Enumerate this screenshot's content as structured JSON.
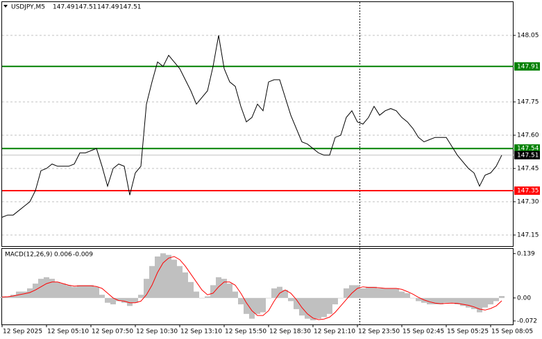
{
  "chart_data": [
    {
      "type": "line",
      "title": "USDJPY,M5",
      "ohlc": [
        147.49,
        147.51,
        147.49,
        147.51
      ],
      "color": "#000000",
      "values": [
        147.23,
        147.24,
        147.24,
        147.26,
        147.28,
        147.3,
        147.35,
        147.44,
        147.45,
        147.47,
        147.46,
        147.46,
        147.46,
        147.47,
        147.52,
        147.52,
        147.53,
        147.54,
        147.46,
        147.37,
        147.45,
        147.47,
        147.46,
        147.33,
        147.43,
        147.46,
        147.74,
        147.84,
        147.93,
        147.91,
        147.96,
        147.93,
        147.9,
        147.85,
        147.8,
        147.74,
        147.77,
        147.8,
        147.91,
        148.05,
        147.9,
        147.84,
        147.82,
        147.73,
        147.66,
        147.68,
        147.74,
        147.71,
        147.84,
        147.85,
        147.85,
        147.77,
        147.69,
        147.63,
        147.57,
        147.56,
        147.54,
        147.52,
        147.51,
        147.51,
        147.59,
        147.6,
        147.68,
        147.71,
        147.66,
        147.65,
        147.68,
        147.73,
        147.69,
        147.71,
        147.72,
        147.71,
        147.68,
        147.66,
        147.63,
        147.59,
        147.57,
        147.58,
        147.59,
        147.59,
        147.59,
        147.55,
        147.51,
        147.48,
        147.45,
        147.43,
        147.37,
        147.42,
        147.43,
        147.46,
        147.51
      ],
      "xlim": [
        0,
        90
      ],
      "ylim": [
        147.1,
        148.2
      ],
      "yticks": [
        {
          "value": 147.15,
          "label": "147.15"
        },
        {
          "value": 147.3,
          "label": "147.30"
        },
        147.45,
        {
          "value": 147.6,
          "label": "147.60"
        },
        147.75,
        148.05
      ],
      "grid": true,
      "levels": [
        {
          "value": 147.91,
          "color": "#008000"
        },
        {
          "value": 147.54,
          "color": "#008000"
        },
        {
          "value": 147.35,
          "color": "#ff0000"
        }
      ],
      "current": 147.51
    },
    {
      "type": "bar",
      "title": "MACD(12,26,9)",
      "series": [
        {
          "mark": "bar",
          "color": "#c0c0c0",
          "values": [
            0.003,
            0.005,
            0.01,
            0.02,
            0.02,
            0.03,
            0.045,
            0.06,
            0.065,
            0.06,
            0.05,
            0.045,
            0.04,
            0.035,
            0.04,
            0.04,
            0.04,
            0.035,
            0.01,
            -0.015,
            -0.02,
            -0.01,
            -0.015,
            -0.025,
            -0.015,
            0.01,
            0.06,
            0.1,
            0.13,
            0.14,
            0.135,
            0.12,
            0.1,
            0.08,
            0.05,
            0.02,
            0.0,
            0.005,
            0.04,
            0.065,
            0.06,
            0.045,
            0.02,
            -0.02,
            -0.05,
            -0.065,
            -0.05,
            -0.045,
            0.0,
            0.03,
            0.035,
            0.025,
            -0.01,
            -0.035,
            -0.055,
            -0.065,
            -0.07,
            -0.065,
            -0.06,
            -0.05,
            -0.02,
            0.0,
            0.03,
            0.04,
            0.04,
            0.03,
            0.035,
            0.035,
            0.03,
            0.03,
            0.03,
            0.03,
            0.02,
            0.015,
            0.0,
            -0.01,
            -0.015,
            -0.02,
            -0.02,
            -0.02,
            -0.015,
            -0.015,
            -0.02,
            -0.025,
            -0.03,
            -0.035,
            -0.045,
            -0.03,
            -0.02,
            -0.01,
            0.006
          ]
        },
        {
          "mark": "line",
          "color": "#ff0000",
          "values": [
            0.003,
            0.004,
            0.006,
            0.01,
            0.013,
            0.017,
            0.025,
            0.035,
            0.045,
            0.05,
            0.05,
            0.045,
            0.04,
            0.037,
            0.038,
            0.038,
            0.038,
            0.036,
            0.03,
            0.015,
            0.0,
            -0.008,
            -0.01,
            -0.015,
            -0.015,
            -0.01,
            0.01,
            0.04,
            0.08,
            0.11,
            0.125,
            0.13,
            0.12,
            0.1,
            0.075,
            0.05,
            0.025,
            0.01,
            0.015,
            0.035,
            0.05,
            0.05,
            0.04,
            0.015,
            -0.015,
            -0.04,
            -0.055,
            -0.055,
            -0.04,
            -0.01,
            0.015,
            0.025,
            0.015,
            -0.005,
            -0.03,
            -0.05,
            -0.063,
            -0.068,
            -0.066,
            -0.06,
            -0.045,
            -0.025,
            -0.005,
            0.015,
            0.03,
            0.035,
            0.033,
            0.033,
            0.032,
            0.03,
            0.03,
            0.03,
            0.027,
            0.02,
            0.012,
            0.002,
            -0.006,
            -0.012,
            -0.016,
            -0.018,
            -0.017,
            -0.016,
            -0.017,
            -0.02,
            -0.023,
            -0.028,
            -0.035,
            -0.038,
            -0.033,
            -0.025,
            -0.009
          ]
        }
      ],
      "xlim": [
        0,
        90
      ],
      "ylim": [
        -0.083,
        0.156
      ],
      "yticks": [
        -0.072,
        {
          "value": 0,
          "label": "0.00"
        },
        0.139
      ],
      "xticks": [
        {
          "value": 0,
          "label": "12 Sep 2025"
        },
        {
          "value": 8,
          "label": "12 Sep 05:10"
        },
        {
          "value": 16,
          "label": "12 Sep 07:50"
        },
        {
          "value": 24,
          "label": "12 Sep 10:30"
        },
        {
          "value": 32,
          "label": "12 Sep 13:10"
        },
        {
          "value": 40,
          "label": "12 Sep 15:50"
        },
        {
          "value": 48,
          "label": "12 Sep 18:30"
        },
        {
          "value": 56,
          "label": "12 Sep 21:10"
        },
        {
          "value": 64,
          "label": "12 Sep 23:50"
        },
        {
          "value": 72,
          "label": "15 Sep 02:45"
        },
        {
          "value": 80,
          "label": "15 Sep 05:25"
        },
        {
          "value": 88,
          "label": "15 Sep 08:05"
        }
      ]
    }
  ]
}
